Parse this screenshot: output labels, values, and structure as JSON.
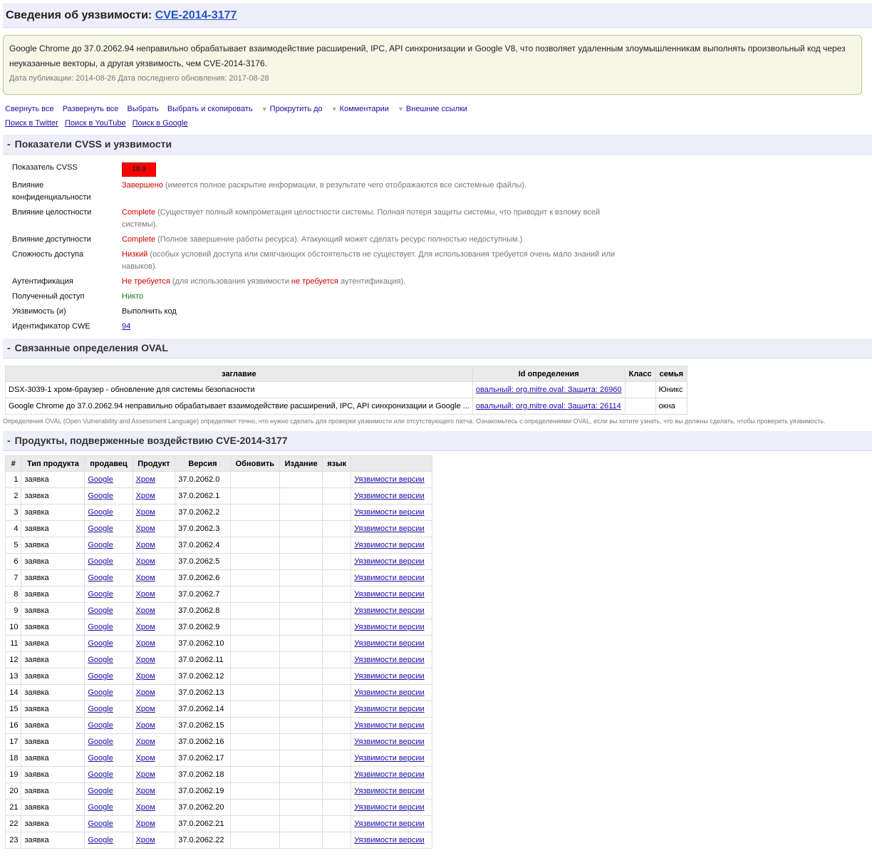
{
  "title": {
    "prefix": "Сведения об уязвимости: ",
    "cve": "CVE-2014-3177"
  },
  "description": {
    "text": "Google Chrome до 37.0.2062.94 неправильно обрабатывает взаимодействие расширений, IPC, API синхронизации и Google V8, что позволяет удаленным злоумышленникам выполнять произвольный код через неуказанные векторы, а другая уязвимость, чем CVE-2014-3176.",
    "dates": "Дата публикации: 2014-08-26 Дата последнего обновления: 2017-08-28"
  },
  "actions": {
    "collapse": "Свернуть все",
    "expand": "Развернуть все",
    "select": "Выбрать",
    "select_copy": "Выбрать и скопировать",
    "scroll": "Прокрутить до",
    "comments": "Комментарии",
    "external": "Внешние ссылки",
    "twitter": "Поиск в Twitter",
    "youtube": "Поиск в YouTube",
    "google": "Поиск в Google"
  },
  "cvss_section": {
    "toggle": "-",
    "title": "Показатели CVSS и уязвимости",
    "score_label": "Показатель CVSS",
    "score": "10.0",
    "score_color": "#ff0000",
    "rows": [
      {
        "label": "Влияние конфиденциальности",
        "value": "Завершено",
        "desc": " (имеется полное раскрытие информации, в результате чего отображаются все системные файлы)."
      },
      {
        "label": "Влияние целостности",
        "value": "Complete",
        "desc": " (Существует полный компрометация целостности системы. Полная потеря защиты системы, что приводит к взлому всей системы)."
      },
      {
        "label": "Влияние доступности",
        "value": "Complete",
        "desc": " (Полное завершение работы ресурса). Атакующий может сделать ресурс полностью недоступным.)"
      },
      {
        "label": "Сложность доступа",
        "value": "Низкий",
        "desc": " (особых условий доступа или смягчающих обстоятельств не существует. Для использования требуется очень мало знаний или навыков)."
      }
    ],
    "auth": {
      "label": "Аутентификация",
      "value": "Не требуется",
      "desc1": " (для использования уязвимости ",
      "value2": "не требуется",
      "desc2": " аутентификация)."
    },
    "access": {
      "label": "Полученный доступ",
      "value": "Никто"
    },
    "vuln": {
      "label": "Уязвимость (и)",
      "value": "Выполнить код"
    },
    "cwe": {
      "label": "Идентификатор CWE",
      "value": "94"
    }
  },
  "oval_section": {
    "toggle": "-",
    "title": "Связанные определения OVAL",
    "headers": [
      "заглавие",
      "Id определения",
      "Класс",
      "семья"
    ],
    "rows": [
      {
        "title": "DSX-3039-1 хром-браузер - обновление для системы безопасности",
        "id": "овальный: org.mitre.oval: Защита: 26960",
        "class": "",
        "family": "Юникс"
      },
      {
        "title": "Google Chrome до 37.0.2062.94 неправильно обрабатывает взаимодействие расширений, IPC, API синхронизации и Google ...",
        "id": "овальный: org.mitre.oval: Защита: 26114",
        "class": "",
        "family": "окна"
      }
    ],
    "note": "Определения OVAL (Open Vulnerability and Assessment Language) определяют точно, что нужно сделать для проверки уязвимости или отсутствующего патча. Ознакомьтесь с определениями OVAL, если вы хотите узнать, что вы должны сделать, чтобы проверить уязвимость."
  },
  "products_section": {
    "toggle": "-",
    "title": "Продукты, подверженные воздействию CVE-2014-3177",
    "headers": [
      "#",
      "Тип продукта",
      "продавец",
      "Продукт",
      "Версия",
      "Обновить",
      "Издание",
      "язык",
      ""
    ],
    "type": "заявка",
    "vendor": "Google",
    "product": "Хром",
    "link": "Уязвимости версии",
    "versions": [
      "37.0.2062.0",
      "37.0.2062.1",
      "37.0.2062.2",
      "37.0.2062.3",
      "37.0.2062.4",
      "37.0.2062.5",
      "37.0.2062.6",
      "37.0.2062.7",
      "37.0.2062.8",
      "37.0.2062.9",
      "37.0.2062.10",
      "37.0.2062.11",
      "37.0.2062.12",
      "37.0.2062.13",
      "37.0.2062.14",
      "37.0.2062.15",
      "37.0.2062.16",
      "37.0.2062.17",
      "37.0.2062.18",
      "37.0.2062.19",
      "37.0.2062.20",
      "37.0.2062.21",
      "37.0.2062.22"
    ]
  }
}
